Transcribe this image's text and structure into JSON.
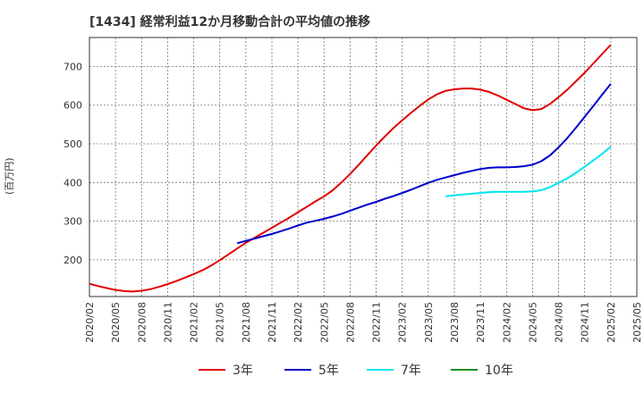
{
  "chart_data": {
    "type": "line",
    "title": "[1434]  経常利益12か月移動合計の平均値の推移",
    "ylabel": "(百万円)",
    "xlabel": "",
    "ylim": [
      105,
      775
    ],
    "yticks": [
      200,
      300,
      400,
      500,
      600,
      700
    ],
    "xticks": [
      "2020/02",
      "2020/05",
      "2020/08",
      "2020/11",
      "2021/02",
      "2021/05",
      "2021/08",
      "2021/11",
      "2022/02",
      "2022/05",
      "2022/08",
      "2022/11",
      "2023/02",
      "2023/05",
      "2023/08",
      "2023/11",
      "2024/02",
      "2024/05",
      "2024/08",
      "2024/11",
      "2025/02",
      "2025/05"
    ],
    "grid": true,
    "legend_position": "bottom",
    "series": [
      {
        "name": "3年",
        "color": "#e00000",
        "points": [
          [
            "2020/02",
            138
          ],
          [
            "2020/03",
            132
          ],
          [
            "2020/04",
            127
          ],
          [
            "2020/05",
            122
          ],
          [
            "2020/06",
            119
          ],
          [
            "2020/07",
            118
          ],
          [
            "2020/08",
            120
          ],
          [
            "2020/09",
            124
          ],
          [
            "2020/10",
            130
          ],
          [
            "2020/11",
            137
          ],
          [
            "2020/12",
            145
          ],
          [
            "2021/01",
            154
          ],
          [
            "2021/02",
            163
          ],
          [
            "2021/03",
            173
          ],
          [
            "2021/04",
            185
          ],
          [
            "2021/05",
            199
          ],
          [
            "2021/06",
            214
          ],
          [
            "2021/07",
            229
          ],
          [
            "2021/08",
            244
          ],
          [
            "2021/09",
            257
          ],
          [
            "2021/10",
            270
          ],
          [
            "2021/11",
            283
          ],
          [
            "2021/12",
            296
          ],
          [
            "2022/01",
            309
          ],
          [
            "2022/02",
            323
          ],
          [
            "2022/03",
            337
          ],
          [
            "2022/04",
            351
          ],
          [
            "2022/05",
            364
          ],
          [
            "2022/06",
            380
          ],
          [
            "2022/07",
            400
          ],
          [
            "2022/08",
            422
          ],
          [
            "2022/09",
            446
          ],
          [
            "2022/10",
            471
          ],
          [
            "2022/11",
            496
          ],
          [
            "2022/12",
            519
          ],
          [
            "2023/01",
            541
          ],
          [
            "2023/02",
            561
          ],
          [
            "2023/03",
            580
          ],
          [
            "2023/04",
            598
          ],
          [
            "2023/05",
            615
          ],
          [
            "2023/06",
            628
          ],
          [
            "2023/07",
            637
          ],
          [
            "2023/08",
            641
          ],
          [
            "2023/09",
            643
          ],
          [
            "2023/10",
            643
          ],
          [
            "2023/11",
            640
          ],
          [
            "2023/12",
            634
          ],
          [
            "2024/01",
            625
          ],
          [
            "2024/02",
            614
          ],
          [
            "2024/03",
            603
          ],
          [
            "2024/04",
            592
          ],
          [
            "2024/05",
            587
          ],
          [
            "2024/06",
            590
          ],
          [
            "2024/07",
            603
          ],
          [
            "2024/08",
            621
          ],
          [
            "2024/09",
            640
          ],
          [
            "2024/10",
            662
          ],
          [
            "2024/11",
            684
          ],
          [
            "2024/12",
            708
          ],
          [
            "2025/01",
            732
          ],
          [
            "2025/02",
            756
          ]
        ]
      },
      {
        "name": "5年",
        "color": "#0000cc",
        "points": [
          [
            "2021/07",
            243
          ],
          [
            "2021/08",
            249
          ],
          [
            "2021/09",
            255
          ],
          [
            "2021/10",
            261
          ],
          [
            "2021/11",
            267
          ],
          [
            "2021/12",
            274
          ],
          [
            "2022/01",
            281
          ],
          [
            "2022/02",
            289
          ],
          [
            "2022/03",
            296
          ],
          [
            "2022/04",
            301
          ],
          [
            "2022/05",
            306
          ],
          [
            "2022/06",
            312
          ],
          [
            "2022/07",
            319
          ],
          [
            "2022/08",
            327
          ],
          [
            "2022/09",
            335
          ],
          [
            "2022/10",
            343
          ],
          [
            "2022/11",
            350
          ],
          [
            "2022/12",
            358
          ],
          [
            "2023/01",
            365
          ],
          [
            "2023/02",
            373
          ],
          [
            "2023/03",
            381
          ],
          [
            "2023/04",
            390
          ],
          [
            "2023/05",
            399
          ],
          [
            "2023/06",
            407
          ],
          [
            "2023/07",
            413
          ],
          [
            "2023/08",
            419
          ],
          [
            "2023/09",
            425
          ],
          [
            "2023/10",
            430
          ],
          [
            "2023/11",
            435
          ],
          [
            "2023/12",
            438
          ],
          [
            "2024/01",
            439
          ],
          [
            "2024/02",
            439
          ],
          [
            "2024/03",
            440
          ],
          [
            "2024/04",
            442
          ],
          [
            "2024/05",
            446
          ],
          [
            "2024/06",
            455
          ],
          [
            "2024/07",
            470
          ],
          [
            "2024/08",
            491
          ],
          [
            "2024/09",
            515
          ],
          [
            "2024/10",
            542
          ],
          [
            "2024/11",
            570
          ],
          [
            "2024/12",
            598
          ],
          [
            "2025/01",
            627
          ],
          [
            "2025/02",
            655
          ]
        ]
      },
      {
        "name": "7年",
        "color": "#00e5ee",
        "points": [
          [
            "2023/07",
            364
          ],
          [
            "2023/08",
            367
          ],
          [
            "2023/09",
            369
          ],
          [
            "2023/10",
            371
          ],
          [
            "2023/11",
            373
          ],
          [
            "2023/12",
            375
          ],
          [
            "2024/01",
            376
          ],
          [
            "2024/02",
            376
          ],
          [
            "2024/03",
            376
          ],
          [
            "2024/04",
            376
          ],
          [
            "2024/05",
            377
          ],
          [
            "2024/06",
            380
          ],
          [
            "2024/07",
            388
          ],
          [
            "2024/08",
            399
          ],
          [
            "2024/09",
            411
          ],
          [
            "2024/10",
            425
          ],
          [
            "2024/11",
            441
          ],
          [
            "2024/12",
            457
          ],
          [
            "2025/01",
            474
          ],
          [
            "2025/02",
            493
          ]
        ]
      },
      {
        "name": "10年",
        "color": "#228b22",
        "points": []
      }
    ]
  }
}
